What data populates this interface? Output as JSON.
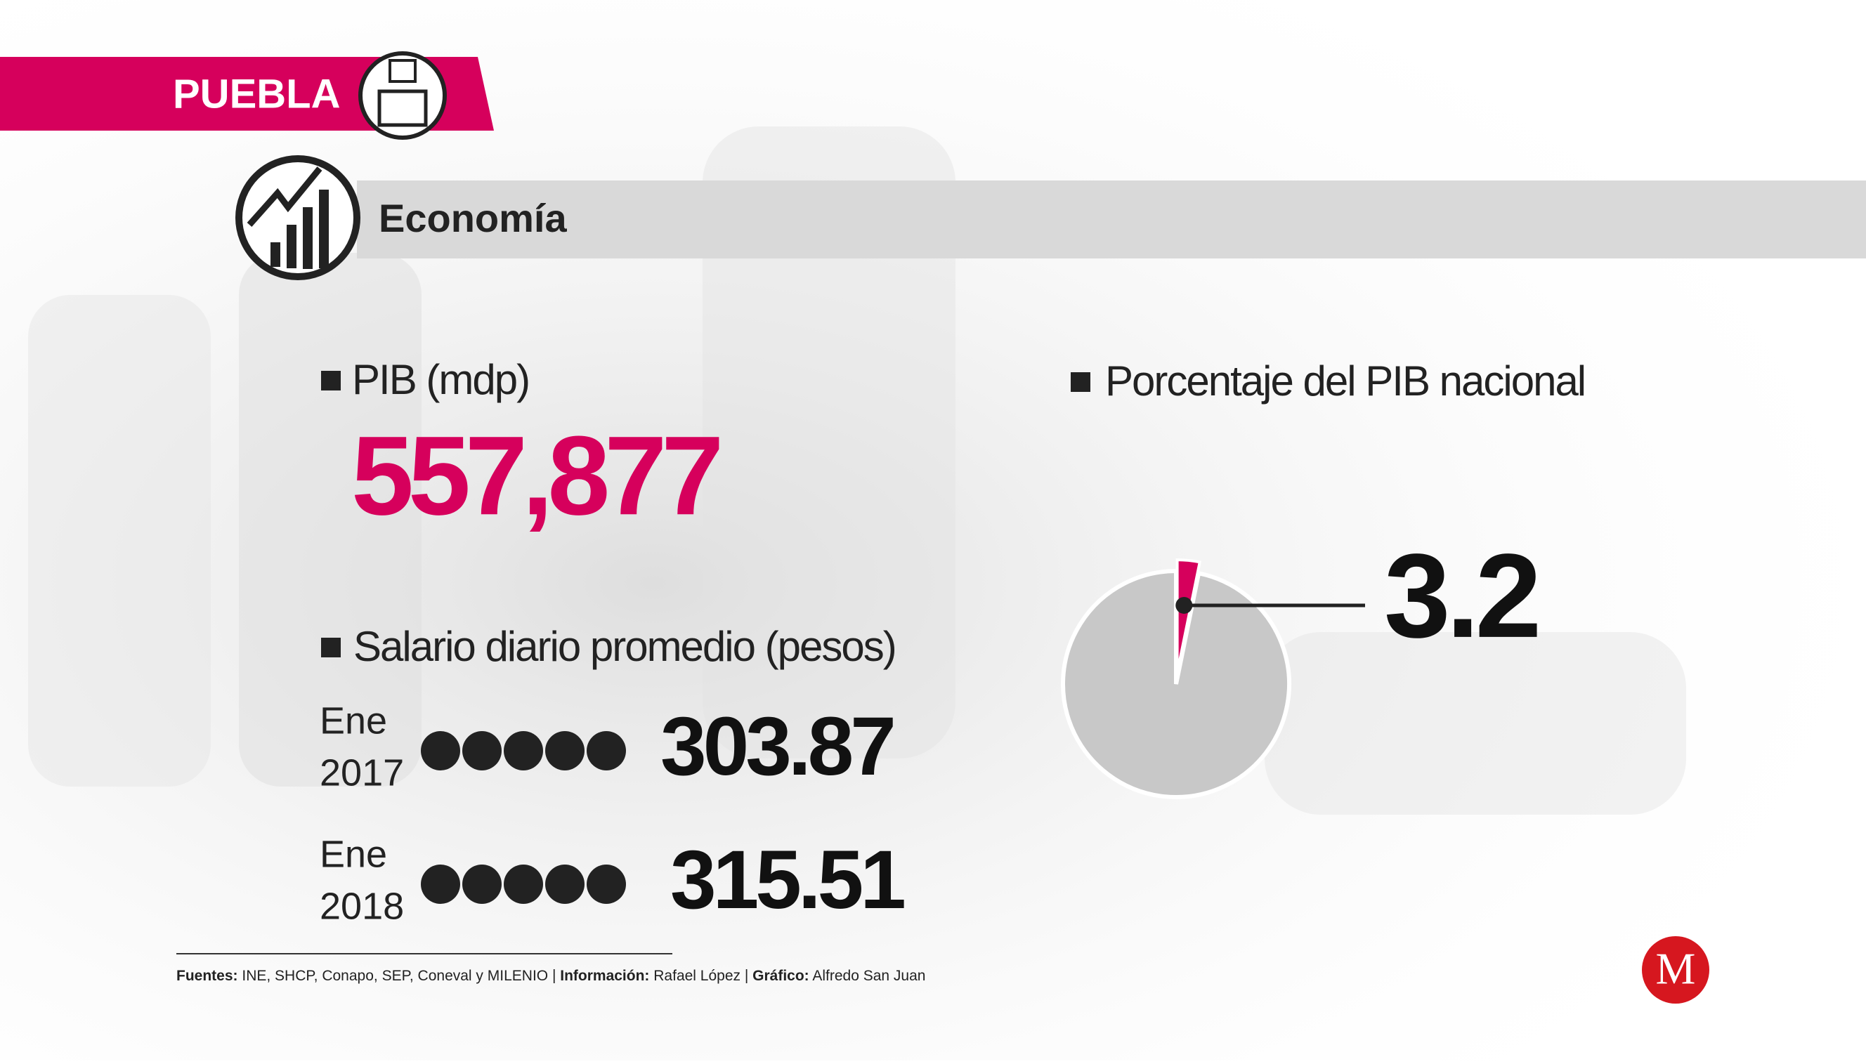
{
  "header": {
    "region": "PUEBLA",
    "section": "Economía"
  },
  "pib": {
    "label": "PIB (mdp)",
    "value": "557,877"
  },
  "salario": {
    "label": "Salario diario promedio (pesos)",
    "rows": [
      {
        "month": "Ene",
        "year": "2017",
        "value": "303.87"
      },
      {
        "month": "Ene",
        "year": "2018",
        "value": "315.51"
      }
    ]
  },
  "chart_data": {
    "type": "pie",
    "title": "Porcentaje del PIB nacional",
    "values": [
      3.2
    ],
    "color": "#d6005c",
    "rest_color": "#c8c8c8"
  },
  "footer": {
    "sources_label": "Fuentes:",
    "sources": "INE, SHCP, Conapo, SEP, Coneval y MILENIO",
    "info_label": "Información:",
    "info": "Rafael López",
    "graphic_label": "Gráfico:",
    "graphic": "Alfredo San Juan"
  },
  "logo": "M"
}
